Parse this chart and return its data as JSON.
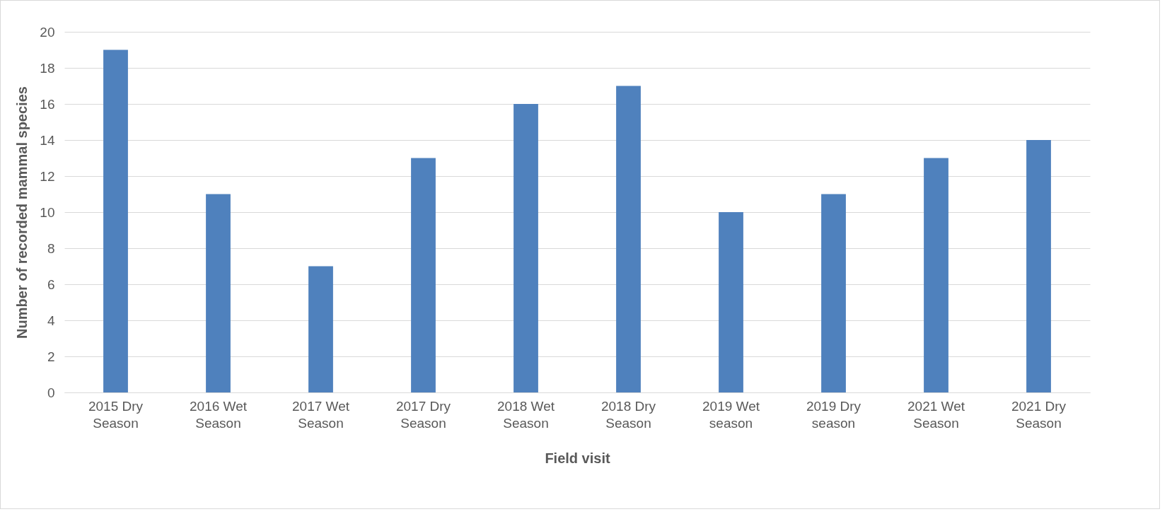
{
  "chart_data": {
    "type": "bar",
    "xlabel": "Field visit",
    "ylabel": "Number of recorded mammal species",
    "categories": [
      "2015 Dry Season",
      "2016 Wet Season",
      "2017 Wet Season",
      "2017 Dry Season",
      "2018 Wet Season",
      "2018 Dry Season",
      "2019 Wet season",
      "2019 Dry season",
      "2021 Wet Season",
      "2021 Dry Season"
    ],
    "values": [
      19,
      11,
      7,
      13,
      16,
      17,
      10,
      11,
      13,
      14
    ],
    "color": "#4f81bd",
    "ylim": [
      0,
      20
    ],
    "yticks": [
      0,
      2,
      4,
      6,
      8,
      10,
      12,
      14,
      16,
      18,
      20
    ],
    "grid": "y"
  }
}
